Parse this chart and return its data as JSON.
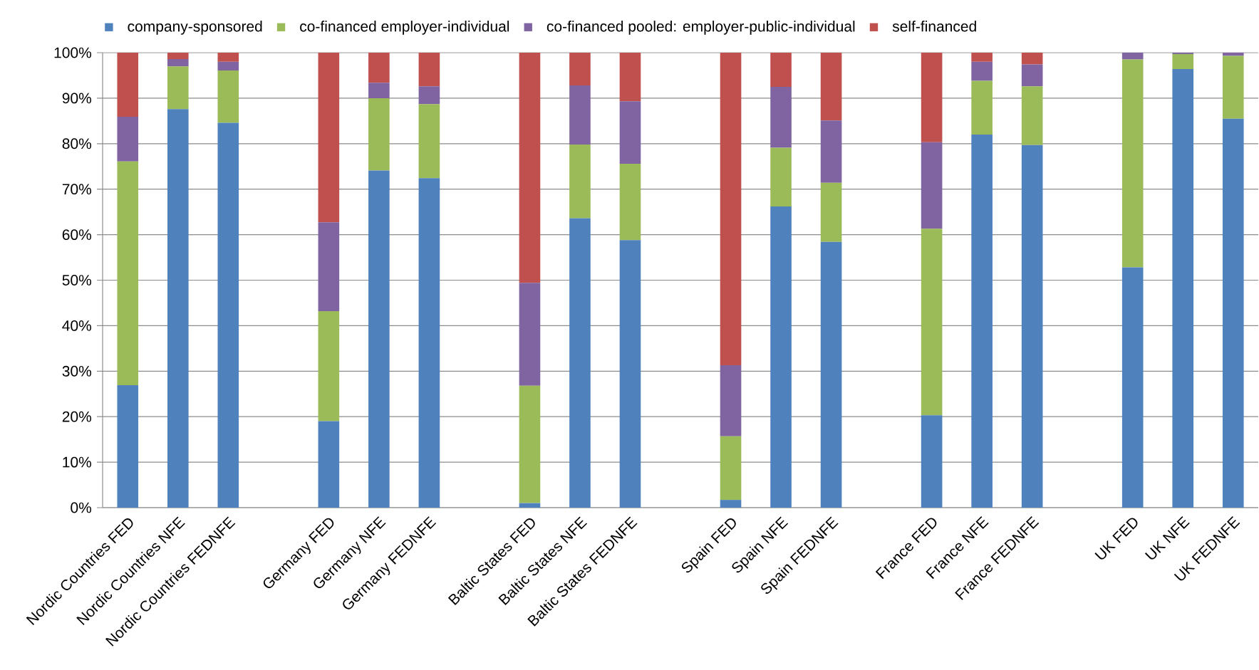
{
  "chart_data": {
    "type": "bar",
    "stacked": true,
    "categories": [
      "Nordic Countries FED",
      "Nordic Countries NFE",
      "Nordic Countries FEDNFE",
      null,
      "Germany FED",
      "Germany NFE",
      "Germany FEDNFE",
      null,
      "Baltic States FED",
      "Baltic States NFE",
      "Baltic States FEDNFE",
      null,
      "Spain FED",
      "Spain NFE",
      "Spain FEDNFE",
      null,
      "France FED",
      "France NFE",
      "France FEDNFE",
      null,
      "UK FED",
      "UK NFE",
      "UK FEDNFE"
    ],
    "series": [
      {
        "name": "company-sponsored",
        "color": "#4f81bd",
        "values": [
          26.9,
          87.6,
          84.6,
          null,
          19.0,
          74.1,
          72.4,
          null,
          1.0,
          63.6,
          58.8,
          null,
          1.7,
          66.2,
          58.4,
          null,
          20.3,
          82.0,
          79.7,
          null,
          52.8,
          96.4,
          85.5
        ]
      },
      {
        "name": "co-financed employer-individual",
        "color": "#9bbb59",
        "values": [
          49.2,
          9.4,
          11.5,
          null,
          24.2,
          15.9,
          16.3,
          null,
          25.8,
          16.2,
          16.8,
          null,
          14.0,
          12.9,
          13.0,
          null,
          41.0,
          11.8,
          12.9,
          null,
          45.7,
          3.3,
          13.8
        ]
      },
      {
        "name": "co-financed pooled: employer-public-individual",
        "color": "#8064a2",
        "values": [
          9.8,
          1.6,
          1.9,
          null,
          19.5,
          3.4,
          3.9,
          null,
          22.6,
          13.0,
          13.7,
          null,
          15.6,
          13.4,
          13.7,
          null,
          19.0,
          4.2,
          4.8,
          null,
          1.5,
          0.3,
          0.7
        ]
      },
      {
        "name": "self-financed",
        "color": "#c0504d",
        "values": [
          14.1,
          1.4,
          2.0,
          null,
          37.3,
          6.6,
          7.4,
          null,
          50.6,
          7.2,
          10.7,
          null,
          68.7,
          7.5,
          14.9,
          null,
          19.7,
          2.0,
          2.6,
          null,
          0,
          0,
          0
        ]
      }
    ],
    "ylim": [
      0,
      100
    ],
    "yticks": [
      {
        "value": 0,
        "label": "0%"
      },
      {
        "value": 10,
        "label": "10%"
      },
      {
        "value": 20,
        "label": "20%"
      },
      {
        "value": 30,
        "label": "30%"
      },
      {
        "value": 40,
        "label": "40%"
      },
      {
        "value": 50,
        "label": "50%"
      },
      {
        "value": 60,
        "label": "60%"
      },
      {
        "value": 70,
        "label": "70%"
      },
      {
        "value": 80,
        "label": "80%"
      },
      {
        "value": 90,
        "label": "90%"
      },
      {
        "value": 100,
        "label": "100%"
      }
    ],
    "grid": "y",
    "legend": "top"
  }
}
